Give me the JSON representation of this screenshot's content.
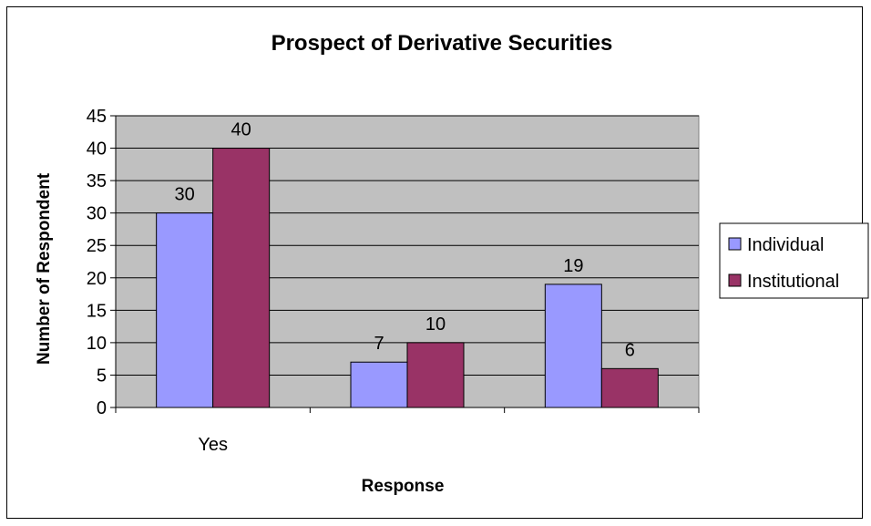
{
  "chart_data": {
    "type": "bar",
    "title": "Prospect of Derivative Securities",
    "xlabel": "Response",
    "ylabel": "Number of Respondent",
    "categories": [
      "Yes",
      "",
      ""
    ],
    "series": [
      {
        "name": "Individual",
        "values": [
          30,
          7,
          19
        ],
        "color": "#9999ff"
      },
      {
        "name": "Institutional",
        "values": [
          40,
          10,
          6
        ],
        "color": "#993366"
      }
    ],
    "ylim": [
      0,
      45
    ],
    "yticks": [
      0,
      5,
      10,
      15,
      20,
      25,
      30,
      35,
      40,
      45
    ],
    "plot_background": "#c0c0c0",
    "grid": true,
    "legend_position": "right"
  }
}
